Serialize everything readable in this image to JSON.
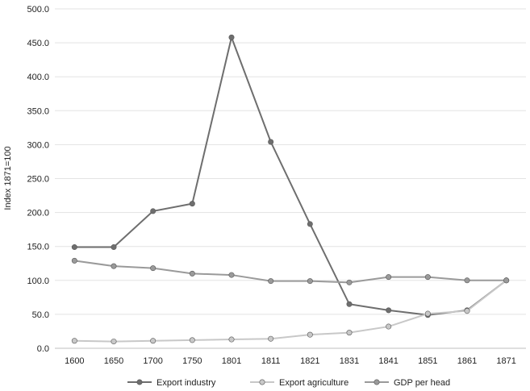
{
  "chart_data": {
    "type": "line",
    "title": "",
    "xlabel": "",
    "ylabel": "Index 1871=100",
    "categories": [
      "1600",
      "1650",
      "1700",
      "1750",
      "1801",
      "1811",
      "1821",
      "1831",
      "1841",
      "1851",
      "1861",
      "1871"
    ],
    "y_ticks": [
      "0.0",
      "50.0",
      "100.0",
      "150.0",
      "200.0",
      "250.0",
      "300.0",
      "350.0",
      "400.0",
      "450.0",
      "500.0"
    ],
    "ylim": [
      0,
      500
    ],
    "grid": "horizontal",
    "legend_position": "bottom",
    "series": [
      {
        "name": "Export industry",
        "color": "#6e6e6e",
        "values": [
          149,
          149,
          202,
          213,
          458,
          304,
          183,
          65,
          56,
          49,
          56,
          100
        ]
      },
      {
        "name": "Export agriculture",
        "color": "#c8c8c8",
        "values": [
          11,
          10,
          11,
          12,
          13,
          14,
          20,
          23,
          32,
          51,
          55,
          100
        ]
      },
      {
        "name": "GDP per head",
        "color": "#9a9a9a",
        "values": [
          129,
          121,
          118,
          110,
          108,
          99,
          99,
          97,
          105,
          105,
          100,
          100
        ]
      }
    ]
  }
}
